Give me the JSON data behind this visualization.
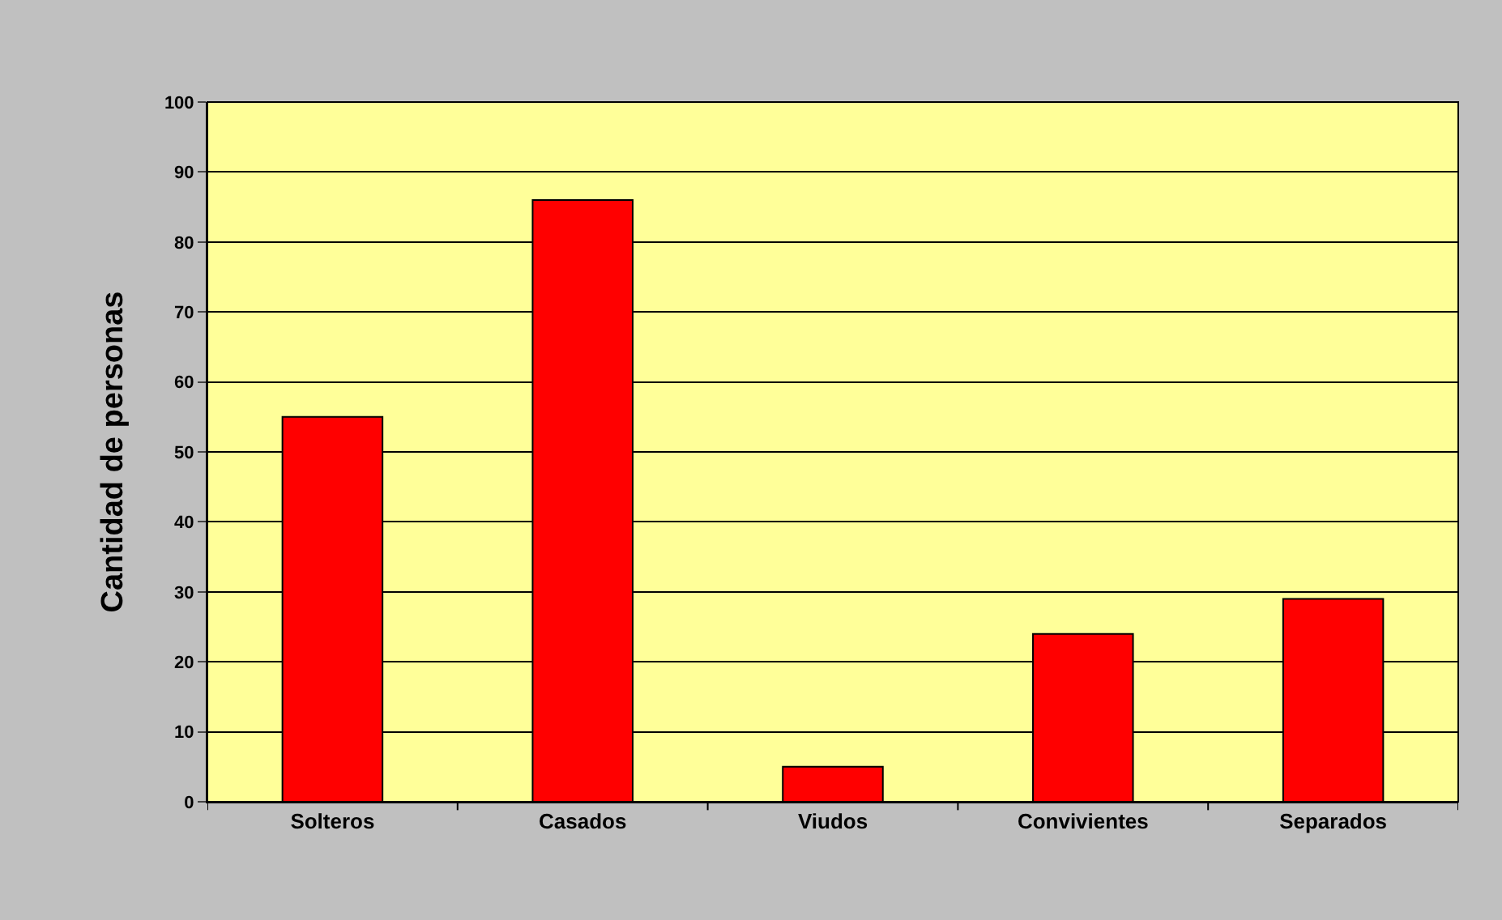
{
  "chart_data": {
    "type": "bar",
    "ylabel": "Cantidad de personas",
    "categories": [
      "Solteros",
      "Casados",
      "Viudos",
      "Convivientes",
      "Separados"
    ],
    "values": [
      55,
      86,
      5,
      24,
      29
    ],
    "color": "#ff0000",
    "ylim": [
      0,
      100
    ],
    "yticks": [
      0,
      10,
      20,
      30,
      40,
      50,
      60,
      70,
      80,
      90,
      100
    ],
    "grid": "y",
    "legend": false
  }
}
